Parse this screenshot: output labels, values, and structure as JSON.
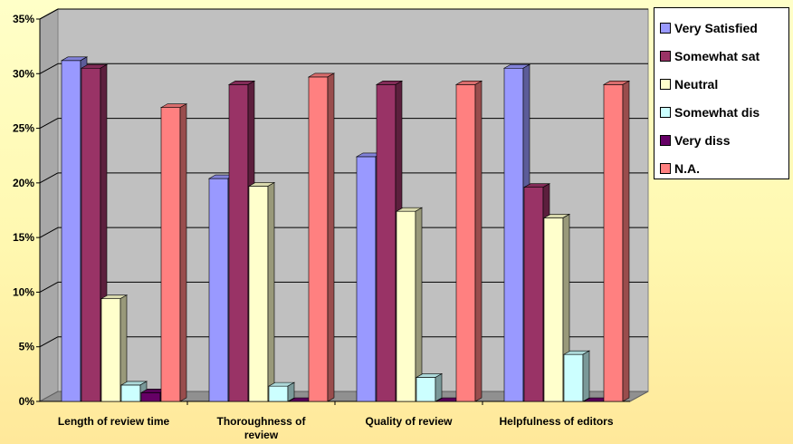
{
  "chart_data": {
    "type": "bar",
    "categories": [
      [
        "Length of review time"
      ],
      [
        "Thoroughness of",
        "review"
      ],
      [
        "Quality of review"
      ],
      [
        "Helpfulness of editors"
      ]
    ],
    "series": [
      {
        "name": "Very Satisfied",
        "color": "#9999ff",
        "values": [
          31.2,
          20.4,
          22.4,
          30.5
        ]
      },
      {
        "name": "Somewhat sat",
        "color": "#993366",
        "values": [
          30.5,
          29.0,
          29.0,
          19.6
        ]
      },
      {
        "name": "Neutral",
        "color": "#ffffcc",
        "values": [
          9.4,
          19.7,
          17.4,
          16.8
        ]
      },
      {
        "name": "Somewhat dis",
        "color": "#ccffff",
        "values": [
          1.5,
          1.4,
          2.2,
          4.3
        ]
      },
      {
        "name": "Very diss",
        "color": "#660066",
        "values": [
          0.8,
          0.0,
          0.0,
          0.0
        ]
      },
      {
        "name": "N.A.",
        "color": "#ff8080",
        "values": [
          26.9,
          29.7,
          29.0,
          29.0
        ]
      }
    ],
    "y_ticks": [
      "0%",
      "5%",
      "10%",
      "15%",
      "20%",
      "25%",
      "30%",
      "35%"
    ],
    "ylim": [
      0,
      35
    ],
    "grid": true,
    "legend_position": "right",
    "plot_background": "#c0c0c0"
  }
}
